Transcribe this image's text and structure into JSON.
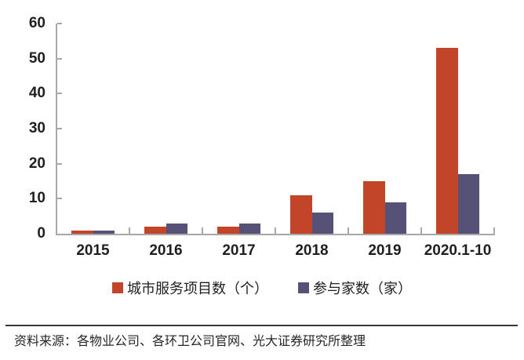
{
  "chart_data": {
    "type": "bar",
    "title": "",
    "categories": [
      "2015",
      "2016",
      "2017",
      "2018",
      "2019",
      "2020.1-10"
    ],
    "series": [
      {
        "name": "城市服务项目数（个）",
        "color": "#C2452A",
        "values": [
          1,
          2,
          2,
          11,
          15,
          53
        ]
      },
      {
        "name": "参与家数（家）",
        "color": "#565177",
        "values": [
          1,
          3,
          3,
          6,
          9,
          17
        ]
      }
    ],
    "xlabel": "",
    "ylabel": "",
    "ylim": [
      0,
      60
    ],
    "yticks": [
      0,
      10,
      20,
      30,
      40,
      50,
      60
    ],
    "grid": false,
    "legend_position": "bottom"
  },
  "source_note": "资料来源：各物业公司、各环卫公司官网、光大证券研究所整理",
  "colors": {
    "series1": "#C2452A",
    "series2": "#565177",
    "axis": "#A8A8A8",
    "text": "#1F1F1F",
    "divider": "#383838",
    "background": "#FFFFFF"
  }
}
